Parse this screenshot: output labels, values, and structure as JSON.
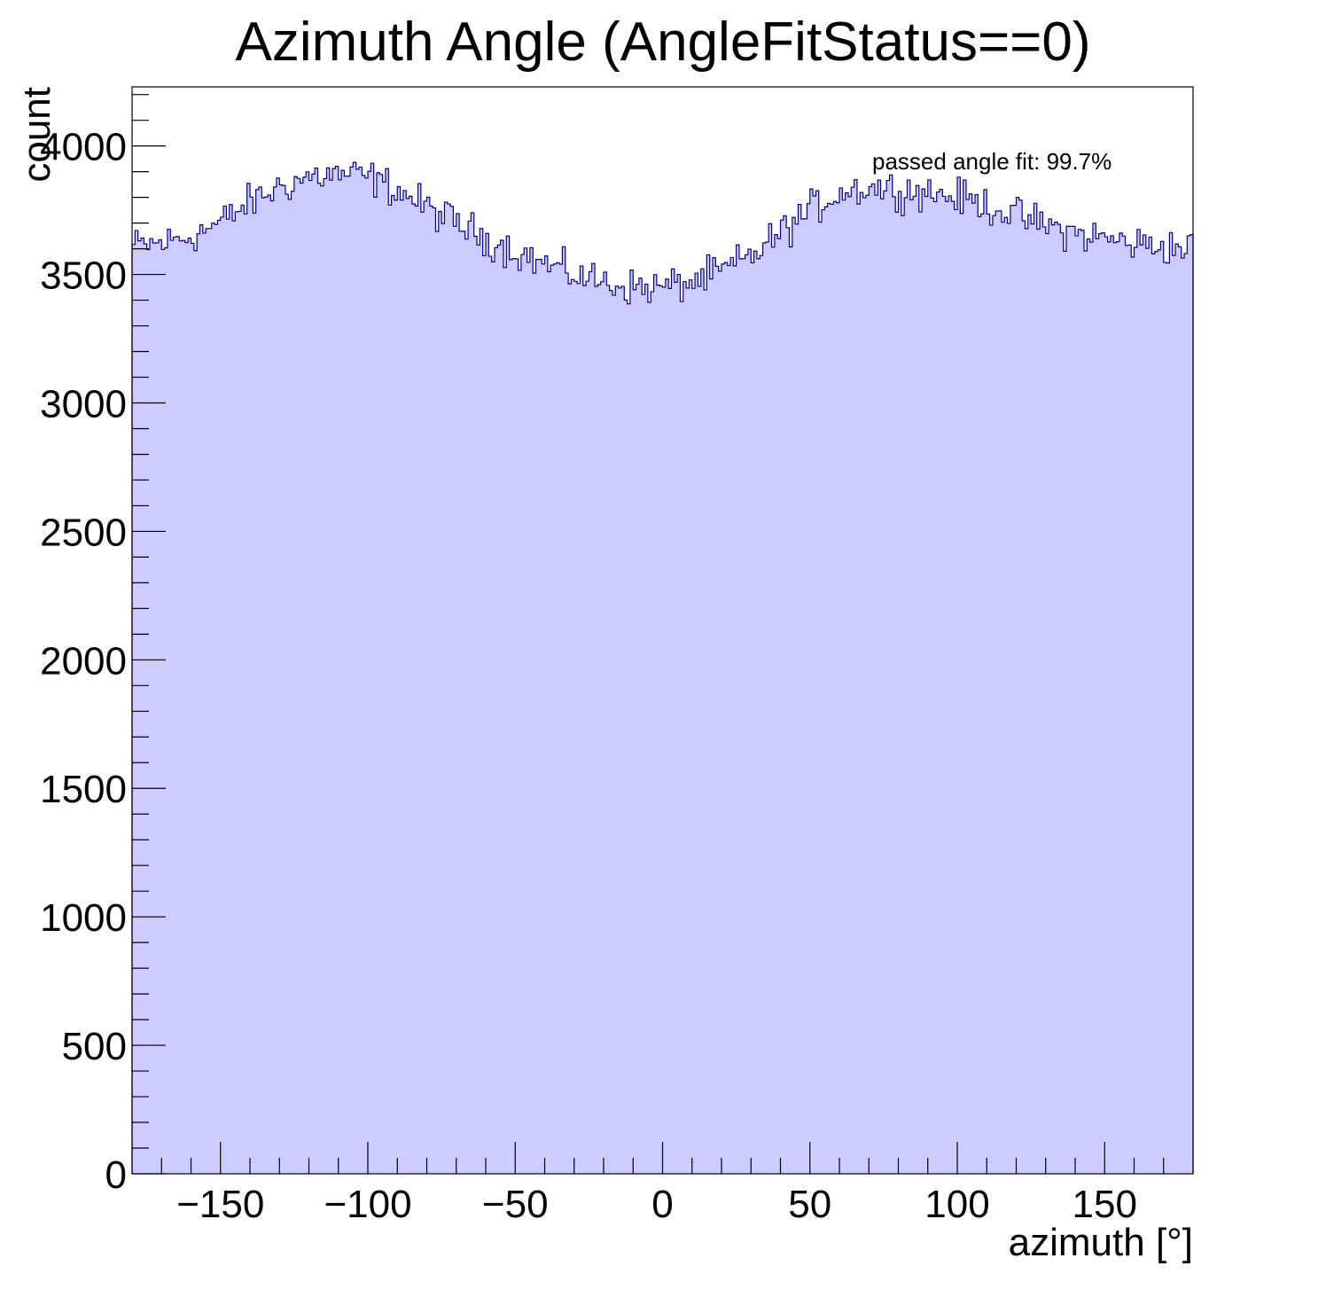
{
  "chart_data": {
    "type": "bar",
    "subtype": "histogram",
    "title": "Azimuth Angle (AngleFitStatus==0)",
    "xlabel": "azimuth [°]",
    "ylabel": "count",
    "annotation": "passed angle fit: 99.7%",
    "xlim": [
      -180,
      180
    ],
    "ylim": [
      0,
      4230
    ],
    "bin_width": 1,
    "x_ticks": [
      -150,
      -100,
      -50,
      0,
      50,
      100,
      150
    ],
    "x_tick_labels": [
      "−150",
      "−100",
      "−50",
      "0",
      "50",
      "100",
      "150"
    ],
    "y_ticks": [
      0,
      500,
      1000,
      1500,
      2000,
      2500,
      3000,
      3500,
      4000
    ],
    "y_tick_labels": [
      "0",
      "500",
      "1000",
      "1500",
      "2000",
      "2500",
      "3000",
      "3500",
      "4000"
    ],
    "grid": false,
    "fill_color": "#ccccff",
    "line_color": "#000099",
    "trend_x": [
      -180,
      -170,
      -160,
      -150,
      -140,
      -130,
      -120,
      -110,
      -100,
      -90,
      -80,
      -70,
      -60,
      -50,
      -40,
      -30,
      -20,
      -10,
      0,
      10,
      20,
      30,
      40,
      50,
      60,
      70,
      80,
      90,
      100,
      110,
      120,
      130,
      140,
      150,
      160,
      170,
      180
    ],
    "trend_y": [
      3610,
      3620,
      3650,
      3700,
      3780,
      3840,
      3880,
      3890,
      3880,
      3830,
      3760,
      3700,
      3640,
      3590,
      3540,
      3500,
      3470,
      3450,
      3450,
      3470,
      3510,
      3570,
      3660,
      3750,
      3820,
      3840,
      3830,
      3820,
      3800,
      3770,
      3730,
      3690,
      3660,
      3640,
      3620,
      3610,
      3600
    ],
    "fluctuation_amplitude": 70
  }
}
